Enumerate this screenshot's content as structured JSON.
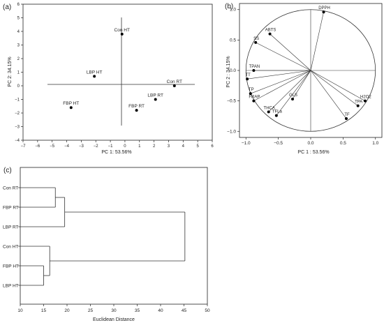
{
  "colors": {
    "axis": "#222222",
    "line": "#333333",
    "point": "#000000"
  },
  "chart_data": [
    {
      "panel": "(a)",
      "type": "scatter",
      "xlabel": "PC 1: 53.56%",
      "ylabel": "PC 2: 34.15%",
      "xlim": [
        -7,
        6
      ],
      "ylim": [
        -4,
        6
      ],
      "xticks": [
        -7,
        -6,
        -5,
        -4,
        -3,
        -2,
        -1,
        0,
        1,
        2,
        3,
        4,
        5,
        6
      ],
      "yticks": [
        -4,
        -3,
        -2,
        -1,
        0,
        1,
        2,
        3,
        4,
        5,
        6
      ],
      "points": [
        {
          "label": "Con HT",
          "x": -0.2,
          "y": 3.8
        },
        {
          "label": "LBP HT",
          "x": -2.1,
          "y": 0.7
        },
        {
          "label": "Con RT",
          "x": 3.4,
          "y": 0.0
        },
        {
          "label": "LBP RT",
          "x": 2.1,
          "y": -1.0
        },
        {
          "label": "FBP RT",
          "x": 0.8,
          "y": -1.8
        },
        {
          "label": "FBP HT",
          "x": -3.7,
          "y": -1.6
        }
      ]
    },
    {
      "panel": "(b)",
      "type": "scatter",
      "xlabel": "PC 1 : 53.56%",
      "ylabel": "PC 2 : 34.15%",
      "xlim": [
        -1.1,
        1.1
      ],
      "ylim": [
        -1.1,
        1.1
      ],
      "xticks": [
        -1.0,
        -0.5,
        0.0,
        0.5,
        1.0
      ],
      "yticks": [
        -1.0,
        -0.5,
        0.0,
        0.5,
        1.0
      ],
      "tick_labels_x": [
        "-1.0",
        "-0.5",
        "0.0",
        "0.5",
        "1.0"
      ],
      "tick_labels_y": [
        "-1.0",
        "-0.5",
        "0.0",
        "0.5",
        "1.0"
      ],
      "unit_circle": true,
      "points": [
        {
          "label": "DPPH",
          "x": 0.2,
          "y": 0.96
        },
        {
          "label": "ABTS",
          "x": -0.63,
          "y": 0.6
        },
        {
          "label": "SS",
          "x": -0.85,
          "y": 0.46
        },
        {
          "label": "TPAN",
          "x": -0.88,
          "y": 0.0
        },
        {
          "label": "TT",
          "x": -0.98,
          "y": -0.14
        },
        {
          "label": "TP",
          "x": -0.93,
          "y": -0.38
        },
        {
          "label": "FRAP",
          "x": -0.88,
          "y": -0.5
        },
        {
          "label": "THCA",
          "x": -0.65,
          "y": -0.68
        },
        {
          "label": "TFLa",
          "x": -0.53,
          "y": -0.74
        },
        {
          "label": "GLS",
          "x": -0.28,
          "y": -0.47
        },
        {
          "label": "H2O2",
          "x": 0.84,
          "y": -0.5
        },
        {
          "label": "TPA",
          "x": 0.73,
          "y": -0.58
        },
        {
          "label": "TF",
          "x": 0.55,
          "y": -0.79
        }
      ]
    },
    {
      "panel": "(c)",
      "type": "dendrogram",
      "xlabel": "Euclidean Distance",
      "xlim": [
        10,
        50
      ],
      "xticks": [
        10,
        15,
        20,
        25,
        30,
        35,
        40,
        45,
        50
      ],
      "leaves": [
        "Con RT",
        "FBP RT",
        "LBP RT",
        "Con HT",
        "FBP HT",
        "LBP HT"
      ],
      "merges": [
        {
          "a": 0,
          "b": 1,
          "height": 17.5
        },
        {
          "a": 6,
          "b": 2,
          "height": 19.5
        },
        {
          "a": 4,
          "b": 5,
          "height": 15.0
        },
        {
          "a": 3,
          "b": 8,
          "height": 16.3
        },
        {
          "a": 7,
          "b": 9,
          "height": 45.2
        }
      ]
    }
  ]
}
